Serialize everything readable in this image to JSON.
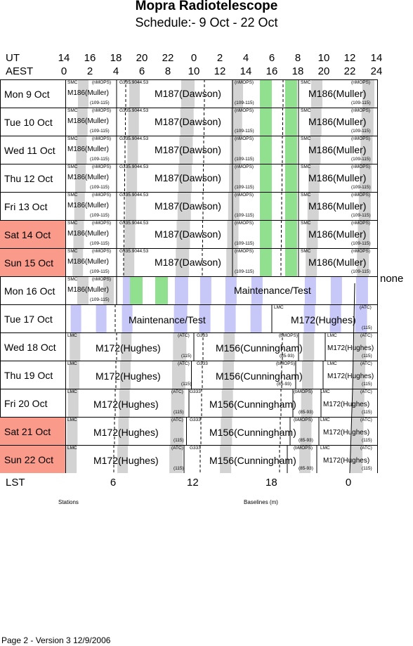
{
  "title": "Mopra Radiotelescope",
  "subtitle": "Schedule:- 9  Oct - 22 Oct",
  "header": {
    "ut_label": "UT",
    "aest_label": "AEST",
    "lst_label": "LST",
    "ut_ticks": [
      "14",
      "16",
      "18",
      "20",
      "22",
      "0",
      "2",
      "4",
      "6",
      "8",
      "10",
      "12",
      "14"
    ],
    "aest_ticks": [
      "0",
      "2",
      "4",
      "6",
      "8",
      "10",
      "12",
      "14",
      "16",
      "18",
      "20",
      "22",
      "24"
    ],
    "lst_ticks": [
      "6",
      "12",
      "18",
      "0"
    ]
  },
  "colors": {
    "weekend": "#fa9a8a",
    "grey": "#d3d3d3",
    "green": "#90e090",
    "maint": "#c8c8f8"
  },
  "rows": [
    {
      "day": "Mon   9  Oct",
      "weekend": false,
      "type": "A"
    },
    {
      "day": "Tue   10 Oct",
      "weekend": false,
      "type": "A"
    },
    {
      "day": "Wed   11 Oct",
      "weekend": false,
      "type": "A"
    },
    {
      "day": "Thu   12 Oct",
      "weekend": false,
      "type": "A"
    },
    {
      "day": "Fri    13 Oct",
      "weekend": false,
      "type": "A"
    },
    {
      "day": "Sat   14 Oct",
      "weekend": true,
      "type": "A"
    },
    {
      "day": "Sun   15 Oct",
      "weekend": true,
      "type": "A"
    },
    {
      "day": "Mon   16 Oct",
      "weekend": false,
      "type": "B"
    },
    {
      "day": "Tue    17 Oct",
      "weekend": false,
      "type": "C"
    },
    {
      "day": "Wed   18 Oct",
      "weekend": false,
      "type": "D"
    },
    {
      "day": "Thu   19 Oct",
      "weekend": false,
      "type": "D"
    },
    {
      "day": "Fri    20 Oct",
      "weekend": false,
      "type": "E"
    },
    {
      "day": "Sat   21 Oct",
      "weekend": true,
      "type": "E"
    },
    {
      "day": "Sun   22 Oct",
      "weekend": true,
      "type": "E"
    }
  ],
  "labels": {
    "smc": "SMC",
    "nmops": "(nMOPS)",
    "m186": "M186(Muller)",
    "range109": "(109-115)",
    "g": "G335.9044.53",
    "m187": "M187(Dawson)",
    "m186big": "M186(Muller)",
    "maint": "Maintenance/Test",
    "lmc": "LMC",
    "atc": "(ATC)",
    "m172": "M172(Hughes)",
    "n115": "(115)",
    "g333": "G333",
    "m156": "M156(Cunningham)",
    "bmops": "(bMOPS)",
    "r85": "(85-93)"
  },
  "none_label": "none",
  "stations_label": "Stations",
  "baselines_label": "Baselines (m)",
  "footer": "Page 2 - Version 3  12/9/2006"
}
